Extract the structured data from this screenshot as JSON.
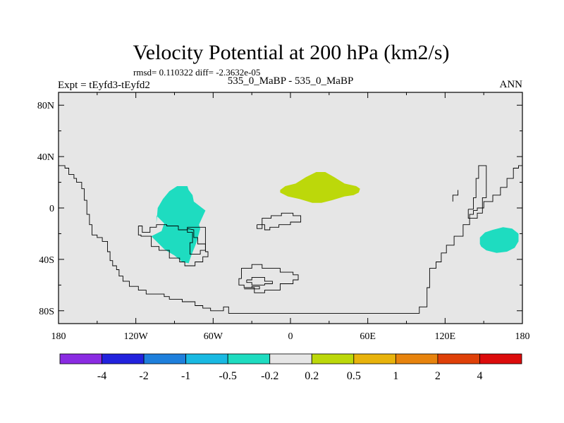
{
  "chart_data": {
    "type": "heatmap",
    "title": "Velocity Potential at 200 hPa (km2/s)",
    "stats": "rmsd= 0.110322 diff= -2.3632e-05",
    "left_label": "Expt = tEyfd3-tEyfd2",
    "center_label": "535_0_MaBP - 535_0_MaBP",
    "right_label": "ANN",
    "x_axis": {
      "range": [
        -180,
        180
      ],
      "ticks": [
        {
          "value": -180,
          "label": "180"
        },
        {
          "value": -120,
          "label": "120W"
        },
        {
          "value": -60,
          "label": "60W"
        },
        {
          "value": 0,
          "label": "0"
        },
        {
          "value": 60,
          "label": "60E"
        },
        {
          "value": 120,
          "label": "120E"
        },
        {
          "value": 180,
          "label": "180"
        }
      ]
    },
    "y_axis": {
      "range": [
        -90,
        90
      ],
      "ticks": [
        {
          "value": 80,
          "label": "80N"
        },
        {
          "value": 40,
          "label": "40N"
        },
        {
          "value": 0,
          "label": "0"
        },
        {
          "value": -40,
          "label": "40S"
        },
        {
          "value": -80,
          "label": "80S"
        }
      ]
    },
    "background_bin": "-0.2 to 0.2",
    "colorbar": {
      "colors": [
        "#8a2be2",
        "#2222dd",
        "#1e7fdc",
        "#19b9e2",
        "#1edcc0",
        "#e6e6e6",
        "#bcd80a",
        "#e8b30c",
        "#e7830d",
        "#df4008",
        "#dc0b0b"
      ],
      "labels": [
        "-4",
        "-2",
        "-1",
        "-0.5",
        "-0.2",
        "0.2",
        "0.5",
        "1",
        "2",
        "4"
      ]
    },
    "anomalies": [
      {
        "name": "western-hemisphere-negative",
        "bin": "-0.5 to -0.2",
        "color": "#1edcc0",
        "polygon": [
          [
            -104,
            -6
          ],
          [
            -104,
            -12
          ],
          [
            -103,
            0
          ],
          [
            -99,
            7
          ],
          [
            -94,
            13
          ],
          [
            -88,
            17
          ],
          [
            -80,
            17
          ],
          [
            -79,
            14
          ],
          [
            -76,
            10
          ],
          [
            -75,
            5
          ],
          [
            -66,
            -2
          ],
          [
            -71,
            -13
          ],
          [
            -70,
            -16
          ],
          [
            -73,
            -27
          ],
          [
            -77,
            -37
          ],
          [
            -79,
            -43
          ],
          [
            -84,
            -42
          ],
          [
            -90,
            -37
          ],
          [
            -95,
            -34
          ],
          [
            -98,
            -32
          ],
          [
            -108,
            -22
          ],
          [
            -104,
            -20
          ],
          [
            -100,
            -18
          ],
          [
            -98,
            -12
          ]
        ]
      },
      {
        "name": "africa-positive",
        "bin": "0.2 to 0.5",
        "color": "#bcd80a",
        "polygon": [
          [
            -8,
            14
          ],
          [
            -8,
            12
          ],
          [
            -2,
            9
          ],
          [
            7,
            7
          ],
          [
            17,
            4
          ],
          [
            24,
            4
          ],
          [
            32,
            6
          ],
          [
            42,
            9
          ],
          [
            49,
            10
          ],
          [
            53,
            12
          ],
          [
            54,
            15
          ],
          [
            51,
            17
          ],
          [
            42,
            19
          ],
          [
            34,
            24
          ],
          [
            27,
            28
          ],
          [
            20,
            28
          ],
          [
            12,
            24
          ],
          [
            4,
            19
          ],
          [
            -4,
            17
          ]
        ]
      },
      {
        "name": "south-pacific-negative",
        "bin": "-0.5 to -0.2",
        "color": "#1edcc0",
        "polygon": [
          [
            147,
            -28
          ],
          [
            147,
            -23
          ],
          [
            151,
            -19
          ],
          [
            157,
            -17
          ],
          [
            165,
            -15
          ],
          [
            172,
            -16
          ],
          [
            177,
            -20
          ],
          [
            177,
            -26
          ],
          [
            174,
            -31
          ],
          [
            168,
            -34
          ],
          [
            160,
            -35
          ],
          [
            152,
            -33
          ],
          [
            148,
            -30
          ]
        ]
      }
    ],
    "coastlines": [
      [
        [
          -180,
          33
        ],
        [
          -175,
          33
        ],
        [
          -175,
          31
        ],
        [
          -172,
          31
        ],
        [
          -172,
          26
        ],
        [
          -168,
          26
        ],
        [
          -168,
          23
        ],
        [
          -166,
          23
        ],
        [
          -166,
          20
        ],
        [
          -162,
          20
        ],
        [
          -162,
          15
        ],
        [
          -160,
          15
        ],
        [
          -160,
          6
        ],
        [
          -158,
          6
        ],
        [
          -158,
          -5
        ],
        [
          -156,
          -5
        ],
        [
          -156,
          -13
        ],
        [
          -154,
          -13
        ],
        [
          -154,
          -21
        ],
        [
          -150,
          -21
        ],
        [
          -150,
          -23
        ],
        [
          -146,
          -23
        ],
        [
          -146,
          -26
        ],
        [
          -142,
          -26
        ],
        [
          -142,
          -34
        ],
        [
          -140,
          -34
        ],
        [
          -140,
          -41
        ],
        [
          -138,
          -41
        ],
        [
          -138,
          -45
        ],
        [
          -135,
          -45
        ],
        [
          -135,
          -48
        ],
        [
          -133,
          -48
        ],
        [
          -133,
          -53
        ],
        [
          -130,
          -53
        ],
        [
          -130,
          -57
        ],
        [
          -125,
          -57
        ],
        [
          -125,
          -61
        ],
        [
          -118,
          -61
        ],
        [
          -118,
          -64
        ],
        [
          -112,
          -64
        ],
        [
          -112,
          -67
        ],
        [
          -98,
          -67
        ],
        [
          -98,
          -69
        ],
        [
          -94,
          -69
        ],
        [
          -94,
          -71
        ],
        [
          -84,
          -71
        ],
        [
          -84,
          -73
        ],
        [
          -74,
          -73
        ],
        [
          -74,
          -76
        ],
        [
          -68,
          -76
        ],
        [
          -68,
          -78
        ],
        [
          -62,
          -78
        ],
        [
          -62,
          -80
        ],
        [
          -52,
          -80
        ],
        [
          -52,
          -77
        ],
        [
          -48,
          -77
        ],
        [
          -48,
          -82
        ],
        [
          -10,
          -82
        ],
        [
          -10,
          -82
        ],
        [
          60,
          -82
        ],
        [
          60,
          -82
        ],
        [
          100,
          -82
        ],
        [
          100,
          -77
        ],
        [
          106,
          -77
        ],
        [
          106,
          -62
        ],
        [
          108,
          -62
        ],
        [
          108,
          -47
        ],
        [
          113,
          -47
        ],
        [
          113,
          -42
        ],
        [
          117,
          -42
        ],
        [
          117,
          -35
        ],
        [
          121,
          -35
        ],
        [
          121,
          -29
        ],
        [
          127,
          -29
        ],
        [
          127,
          -22
        ],
        [
          134,
          -22
        ],
        [
          134,
          -13
        ],
        [
          139,
          -13
        ],
        [
          139,
          -5
        ],
        [
          142,
          -5
        ],
        [
          142,
          -2
        ],
        [
          145,
          -2
        ],
        [
          145,
          0
        ],
        [
          150,
          0
        ],
        [
          150,
          5
        ],
        [
          157,
          5
        ],
        [
          157,
          10
        ],
        [
          163,
          10
        ],
        [
          163,
          16
        ],
        [
          168,
          16
        ],
        [
          168,
          23
        ],
        [
          173,
          23
        ],
        [
          173,
          31
        ],
        [
          177,
          31
        ],
        [
          177,
          33
        ],
        [
          180,
          33
        ]
      ],
      [
        [
          -118,
          -14
        ],
        [
          -115,
          -14
        ],
        [
          -115,
          -19
        ],
        [
          -109,
          -19
        ],
        [
          -109,
          -15
        ],
        [
          -104,
          -15
        ],
        [
          -104,
          -13
        ],
        [
          -96,
          -13
        ],
        [
          -96,
          -14
        ],
        [
          -87,
          -14
        ],
        [
          -87,
          -17
        ],
        [
          -80,
          -17
        ],
        [
          -80,
          -15
        ],
        [
          -66,
          -15
        ],
        [
          -66,
          -34
        ],
        [
          -64,
          -34
        ],
        [
          -64,
          -38
        ],
        [
          -68,
          -38
        ],
        [
          -68,
          -42
        ],
        [
          -74,
          -42
        ],
        [
          -74,
          -45
        ],
        [
          -82,
          -45
        ],
        [
          -82,
          -42
        ],
        [
          -86,
          -42
        ],
        [
          -86,
          -39
        ],
        [
          -94,
          -39
        ],
        [
          -94,
          -33
        ],
        [
          -102,
          -33
        ],
        [
          -102,
          -30
        ],
        [
          -108,
          -30
        ],
        [
          -108,
          -22
        ],
        [
          -116,
          -22
        ],
        [
          -116,
          -21
        ],
        [
          -118,
          -21
        ],
        [
          -118,
          -14
        ]
      ],
      [
        [
          -80,
          -16
        ],
        [
          -80,
          -19
        ],
        [
          -76,
          -19
        ],
        [
          -76,
          -27
        ],
        [
          -78,
          -27
        ],
        [
          -78,
          -36
        ],
        [
          -70,
          -36
        ],
        [
          -70,
          -33
        ],
        [
          -66,
          -33
        ],
        [
          -66,
          -28
        ],
        [
          -72,
          -28
        ],
        [
          -72,
          -23
        ],
        [
          -75,
          -23
        ],
        [
          -75,
          -17
        ],
        [
          -80,
          -16
        ]
      ],
      [
        [
          -26,
          -13
        ],
        [
          -26,
          -16
        ],
        [
          -22,
          -16
        ],
        [
          -22,
          -8
        ],
        [
          -15,
          -8
        ],
        [
          -15,
          -6
        ],
        [
          -7,
          -6
        ],
        [
          -7,
          -4
        ],
        [
          2,
          -4
        ],
        [
          2,
          -6
        ],
        [
          8,
          -6
        ],
        [
          8,
          -11
        ],
        [
          0,
          -11
        ],
        [
          0,
          -13
        ],
        [
          -9,
          -13
        ],
        [
          -9,
          -15
        ],
        [
          -16,
          -15
        ],
        [
          -16,
          -17
        ],
        [
          -20,
          -17
        ],
        [
          -20,
          -13
        ],
        [
          -26,
          -13
        ]
      ],
      [
        [
          -38,
          -55
        ],
        [
          -38,
          -47
        ],
        [
          -30,
          -47
        ],
        [
          -30,
          -44
        ],
        [
          -22,
          -44
        ],
        [
          -22,
          -47
        ],
        [
          -8,
          -47
        ],
        [
          -8,
          -50
        ],
        [
          2,
          -50
        ],
        [
          2,
          -52
        ],
        [
          6,
          -52
        ],
        [
          6,
          -56
        ],
        [
          2,
          -56
        ],
        [
          2,
          -59
        ],
        [
          -8,
          -59
        ],
        [
          -8,
          -64
        ],
        [
          -20,
          -64
        ],
        [
          -20,
          -66
        ],
        [
          -28,
          -66
        ],
        [
          -28,
          -62
        ],
        [
          -36,
          -62
        ],
        [
          -36,
          -60
        ],
        [
          -40,
          -60
        ],
        [
          -40,
          -55
        ],
        [
          -38,
          -55
        ]
      ],
      [
        [
          -34,
          -56
        ],
        [
          -30,
          -56
        ],
        [
          -30,
          -54
        ],
        [
          -20,
          -54
        ],
        [
          -20,
          -57
        ],
        [
          -14,
          -57
        ],
        [
          -14,
          -59
        ],
        [
          -20,
          -59
        ],
        [
          -20,
          -60
        ],
        [
          -30,
          -60
        ],
        [
          -30,
          -58
        ],
        [
          -34,
          -58
        ],
        [
          -34,
          -56
        ]
      ],
      [
        [
          -36,
          -62
        ],
        [
          -30,
          -62
        ],
        [
          -30,
          -61
        ],
        [
          -24,
          -61
        ],
        [
          -24,
          -63
        ],
        [
          -36,
          -63
        ]
      ],
      [
        [
          138,
          -1
        ],
        [
          138,
          -8
        ],
        [
          145,
          -8
        ],
        [
          145,
          -4
        ],
        [
          149,
          -4
        ],
        [
          149,
          8
        ],
        [
          152,
          8
        ],
        [
          152,
          33
        ],
        [
          146,
          33
        ],
        [
          146,
          23
        ],
        [
          144,
          23
        ],
        [
          144,
          8
        ],
        [
          142,
          8
        ],
        [
          142,
          -1
        ],
        [
          138,
          -1
        ]
      ],
      [
        [
          126,
          5
        ],
        [
          126,
          10
        ],
        [
          130,
          10
        ],
        [
          130,
          14
        ]
      ]
    ]
  }
}
